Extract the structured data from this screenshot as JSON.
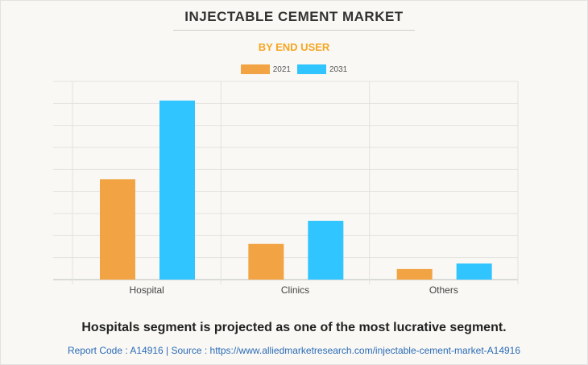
{
  "title": "INJECTABLE CEMENT MARKET",
  "subtitle": "BY END USER",
  "colors": {
    "2021": "#f2a444",
    "2031": "#30c5ff"
  },
  "chart_data": {
    "type": "bar",
    "categories": [
      "Hospital",
      "Clinics",
      "Others"
    ],
    "series": [
      {
        "name": "2021",
        "values": [
          4.56,
          1.62,
          0.48
        ]
      },
      {
        "name": "2031",
        "values": [
          8.13,
          2.67,
          0.73
        ]
      }
    ],
    "ylim": [
      0,
      9
    ],
    "grid": true,
    "legend": "top-center",
    "xlabel": "",
    "ylabel": ""
  },
  "caption": "Hospitals segment is projected as one of the most lucrative segment.",
  "footer": "Report Code : A14916  |  Source : https://www.alliedmarketresearch.com/injectable-cement-market-A14916"
}
